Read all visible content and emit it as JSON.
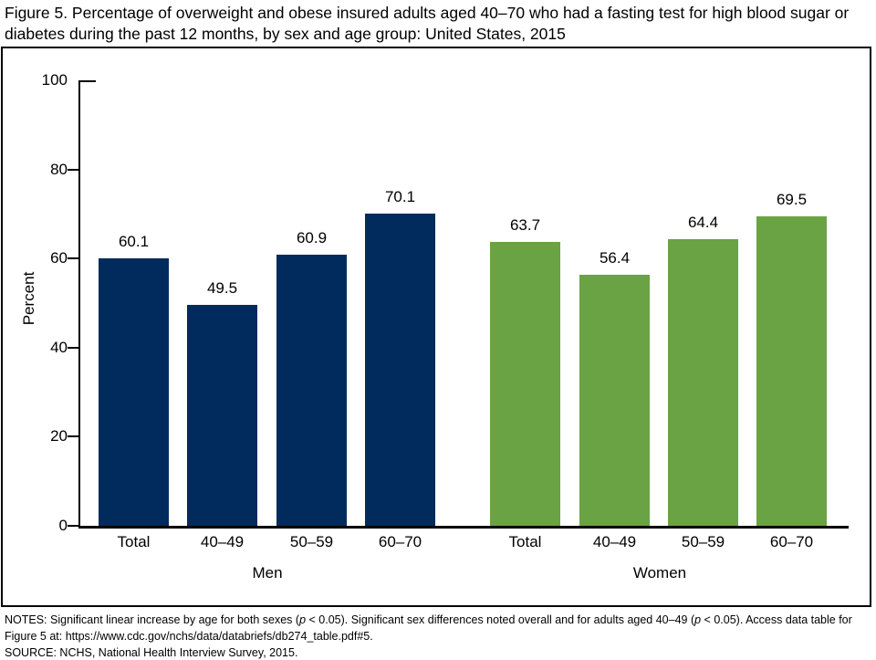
{
  "title": "Figure 5. Percentage of overweight and obese insured adults aged 40–70 who had a fasting test for high blood sugar or diabetes during the past 12 months, by sex and age group: United States, 2015",
  "chart_data": {
    "type": "bar",
    "title": "Fasting test for high blood sugar or diabetes during past 12 months, by sex and age group",
    "ylabel": "Percent",
    "xlabel": "",
    "ylim": [
      0,
      100
    ],
    "yticks": [
      0,
      20,
      40,
      60,
      80,
      100
    ],
    "categories": [
      "Total",
      "40–49",
      "50–59",
      "60–70"
    ],
    "series": [
      {
        "name": "Men",
        "color": "#002B5C",
        "values": [
          60.1,
          49.5,
          60.9,
          70.1
        ]
      },
      {
        "name": "Women",
        "color": "#6AA343",
        "values": [
          63.7,
          56.4,
          64.4,
          69.5
        ]
      }
    ],
    "value_labels": true,
    "grid": false,
    "legend_position": "none"
  },
  "notes": {
    "part1": "NOTES: Significant linear increase by age for both sexes (",
    "p1": "p",
    "part2": " < 0.05). Significant sex differences noted overall and for adults aged 40–49 (",
    "p2": "p",
    "part3": " < 0.05). Access data table for Figure 5 at: https://www.cdc.gov/nchs/data/databriefs/db274_table.pdf#5."
  },
  "source": "SOURCE: NCHS, National Health Interview Survey, 2015."
}
